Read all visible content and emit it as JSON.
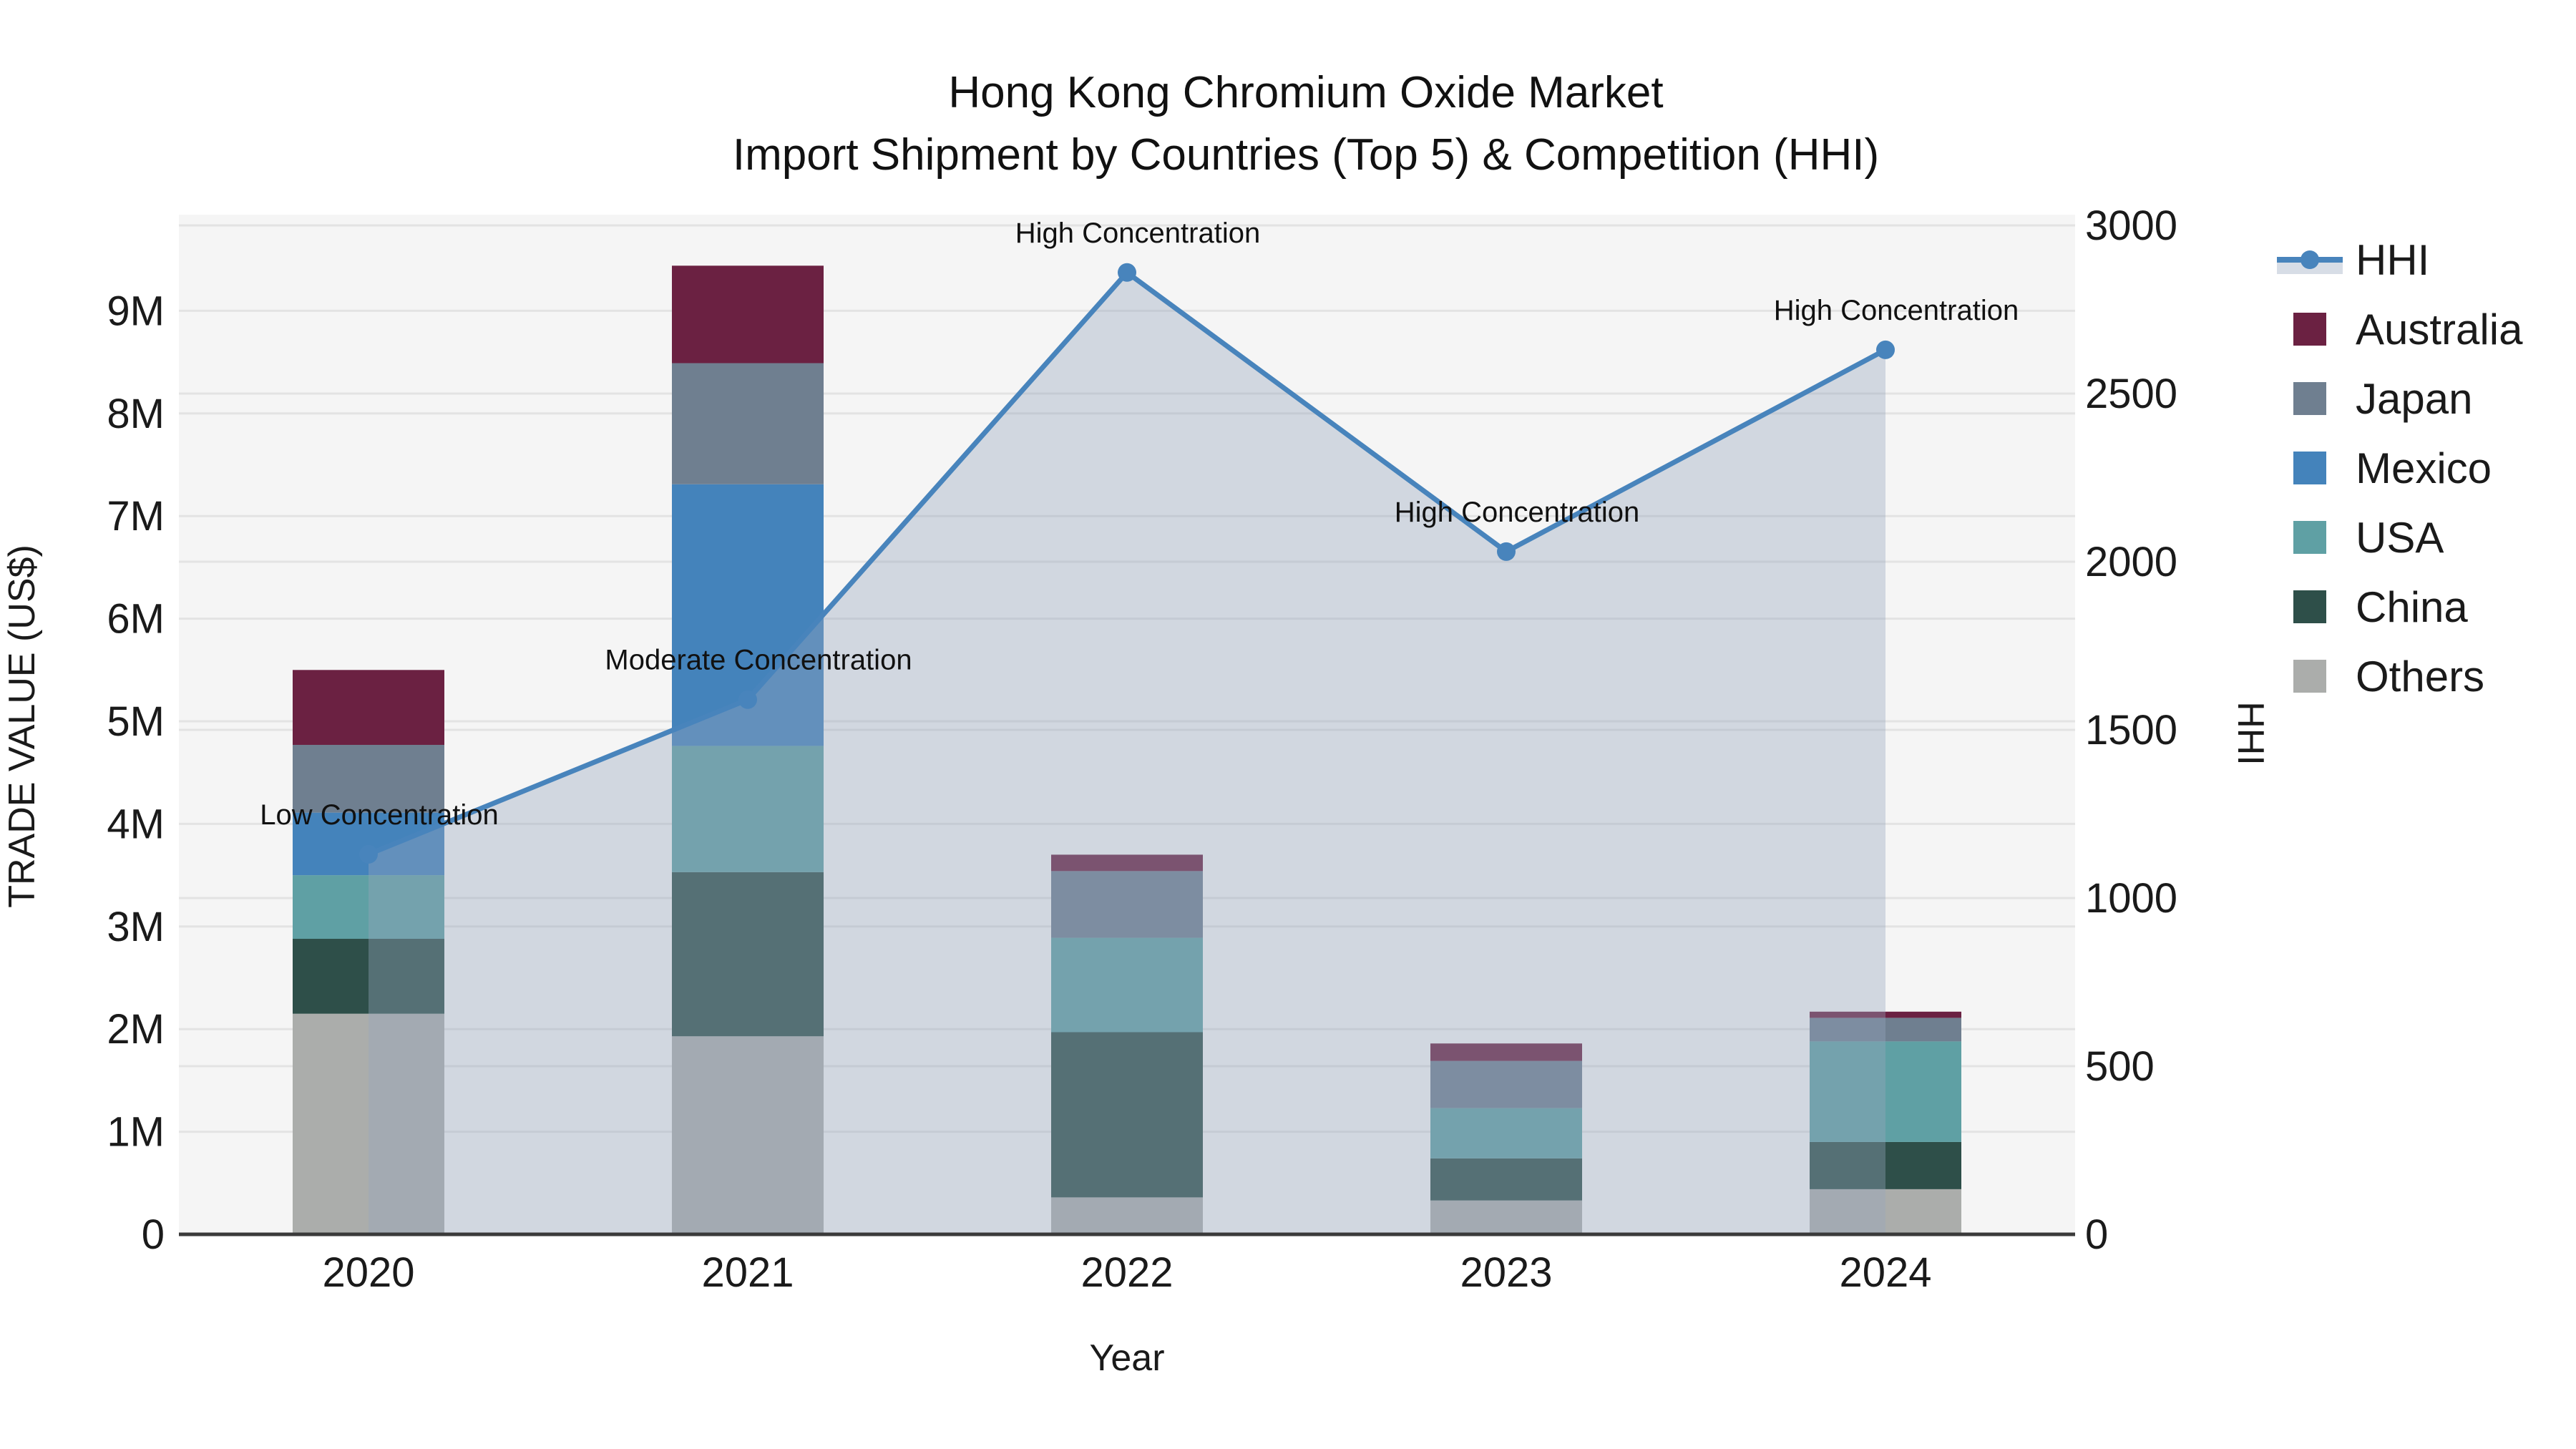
{
  "title": {
    "line1": "Hong Kong Chromium Oxide Market",
    "line2": "Import Shipment by Countries (Top 5) & Competition (HHI)"
  },
  "chart_data": {
    "type": "bar",
    "subtype": "stacked-bar-with-line-area-overlay",
    "categories": [
      "2020",
      "2021",
      "2022",
      "2023",
      "2024"
    ],
    "value_unit": "millions of US$",
    "series": [
      {
        "name": "Others",
        "color": "#ABADAB",
        "values": [
          2.15,
          1.93,
          0.36,
          0.33,
          0.44
        ]
      },
      {
        "name": "China",
        "color": "#2E4F49",
        "values": [
          0.73,
          1.6,
          1.61,
          0.41,
          0.46
        ]
      },
      {
        "name": "USA",
        "color": "#5FA0A4",
        "values": [
          0.62,
          1.23,
          0.92,
          0.49,
          0.98
        ]
      },
      {
        "name": "Mexico",
        "color": "#4483BB",
        "values": [
          0.61,
          2.55,
          0.0,
          0.0,
          0.0
        ]
      },
      {
        "name": "Japan",
        "color": "#6F7F90",
        "values": [
          0.66,
          1.18,
          0.65,
          0.46,
          0.23
        ]
      },
      {
        "name": "Australia",
        "color": "#6B2142",
        "values": [
          0.73,
          0.95,
          0.16,
          0.17,
          0.06
        ]
      }
    ],
    "stack_totals": [
      5.5,
      9.44,
      3.7,
      1.86,
      2.17
    ],
    "line_series": {
      "name": "HHI",
      "axis": "right",
      "color": "#4884BC",
      "area_fill": "rgba(150,165,188,0.38)",
      "values": [
        1130,
        1590,
        2860,
        2030,
        2630
      ]
    },
    "annotations": [
      {
        "year": "2020",
        "text": "Low Concentration"
      },
      {
        "year": "2021",
        "text": "Moderate Concentration"
      },
      {
        "year": "2022",
        "text": "High Concentration"
      },
      {
        "year": "2023",
        "text": "High Concentration"
      },
      {
        "year": "2024",
        "text": "High Concentration"
      }
    ],
    "axes": {
      "left": {
        "title": "TRADE VALUE (US$)",
        "tick_labels": [
          "0",
          "1M",
          "2M",
          "3M",
          "4M",
          "5M",
          "6M",
          "7M",
          "8M",
          "9M"
        ],
        "tick_values": [
          0,
          1,
          2,
          3,
          4,
          5,
          6,
          7,
          8,
          9
        ],
        "range": [
          0,
          10
        ]
      },
      "right": {
        "title": "HHI",
        "tick_labels": [
          "0",
          "500",
          "1000",
          "1500",
          "2000",
          "2500",
          "3000"
        ],
        "tick_values": [
          0,
          500,
          1000,
          1500,
          2000,
          2500,
          3000
        ],
        "range": [
          0,
          3000
        ]
      }
    },
    "x_axis": {
      "title": "Year"
    },
    "legend": {
      "position": "right-top",
      "items": [
        "HHI",
        "Australia",
        "Japan",
        "Mexico",
        "USA",
        "China",
        "Others"
      ]
    },
    "style": {
      "plot_background": "#F5F5F5",
      "page_background": "#FFFFFF",
      "gridline_color": "#E3E3E3",
      "axis_line_color": "#3A3A3A"
    }
  }
}
